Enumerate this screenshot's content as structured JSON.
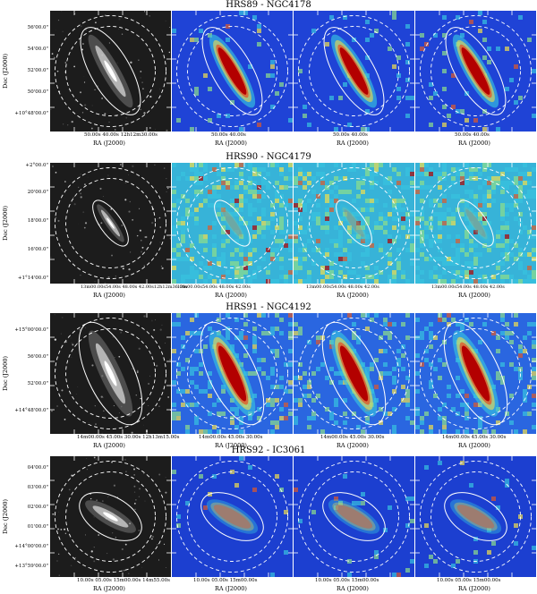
{
  "y_axis_label": "Dec (J2000)",
  "x_axis_label": "RA (J2000)",
  "rows": [
    {
      "title": "HRS89 - NGC4178",
      "y_ticks": [
        "56'00.0\"",
        "54'00.0\"",
        "52'00.0\"",
        "50'00.0\"",
        "+10°48'00.0\""
      ],
      "x_ticks": [
        "50.00s   40.00s 12h12m30.00s",
        "50.00s   40.00s",
        "50.00s   40.00s",
        "50.00s   40.00s"
      ],
      "galaxy_tilt_deg": 60,
      "galaxy_appearance": "edge-on, strong emission"
    },
    {
      "title": "HRS90 - NGC4179",
      "y_ticks": [
        "+2°00.0\"",
        "20'00.0\"",
        "18'00.0\"",
        "16'00.0\"",
        "+1°14'00.0\""
      ],
      "x_ticks": [
        "13m00.00s54.00s   48.00s   42.00s12h12m36.00s",
        "13m00.00s54.00s   48.00s   42.00s",
        "13m00.00s54.00s   48.00s   42.00s",
        "13m00.00s54.00s   48.00s   42.00s"
      ],
      "galaxy_tilt_deg": 55,
      "galaxy_appearance": "compact, noise-dominated"
    },
    {
      "title": "HRS91 - NGC4192",
      "y_ticks": [
        "+15°00'00.0\"",
        "56'00.0\"",
        "52'00.0\"",
        "+14°48'00.0\""
      ],
      "x_ticks": [
        "14m00.00s  45.00s   30.00s 12h13m15.00s",
        "14m00.00s  45.00s   30.00s",
        "14m00.00s  45.00s   30.00s",
        "14m00.00s  45.00s   30.00s"
      ],
      "galaxy_tilt_deg": 65,
      "galaxy_appearance": "large, strong emission"
    },
    {
      "title": "HRS92 - IC3061",
      "y_ticks": [
        "04'00.0\"",
        "03'00.0\"",
        "02'00.0\"",
        "01'00.0\"",
        "+14°00'00.0\"",
        "+13°59'00.0\""
      ],
      "x_ticks": [
        "10.00s   05.00s 15m00.00s 14m55.00s",
        "10.00s   05.00s 15m00.00s",
        "10.00s   05.00s 15m00.00s",
        "10.00s   05.00s 15m00.00s"
      ],
      "galaxy_tilt_deg": 30,
      "galaxy_appearance": "faint, small"
    }
  ],
  "colors": {
    "optical_background": "#1c1c1c",
    "map_low": "#1f43d6",
    "map_mid": "#37c3e0",
    "map_high": "#b30000",
    "aperture_line": "#ffffff"
  }
}
